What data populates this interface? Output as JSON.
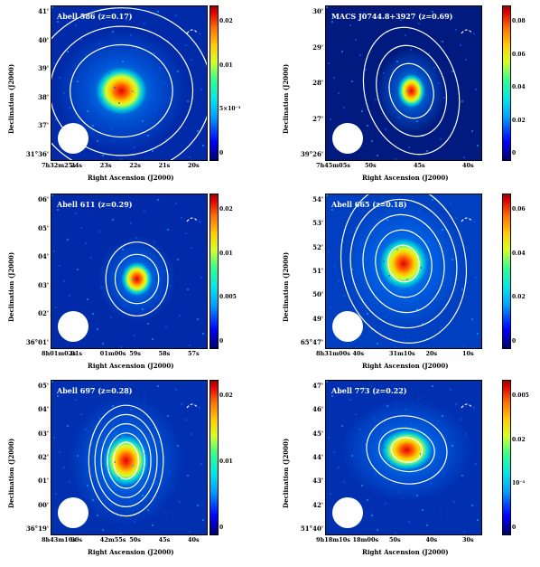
{
  "panels": [
    {
      "title": "Abell 586 (z=0.17)",
      "ylabel": "Declination (J2000)",
      "xlabel": "Right Ascension (J2000)",
      "yticks": [
        "41'",
        "40'",
        "39'",
        "38'",
        "37'",
        "31°36'"
      ],
      "xticks": [
        "7h32m25s",
        "24s",
        "23s",
        "22s",
        "21s",
        "20s"
      ],
      "cbticks": [
        "0.02",
        "0.01",
        "5×10⁻³",
        "0"
      ]
    },
    {
      "title": "MACS J0744.8+3927 (z=0.69)",
      "ylabel": "Declination (J2000)",
      "xlabel": "Right Ascension (J2000)",
      "yticks": [
        "30'",
        "29'",
        "28'",
        "27'",
        "39°26'"
      ],
      "xticks": [
        "7h45m05s",
        "50s",
        "45s",
        "40s"
      ],
      "cbticks": [
        "0.08",
        "0.06",
        "0.04",
        "0.02",
        "0"
      ]
    },
    {
      "title": "Abell 611 (z=0.29)",
      "ylabel": "Declination (J2000)",
      "xlabel": "Right Ascension (J2000)",
      "yticks": [
        "06'",
        "05'",
        "04'",
        "03'",
        "02'",
        "36°01'"
      ],
      "xticks": [
        "8h01m02s",
        "01s",
        "01m00s",
        "59s",
        "58s",
        "57s"
      ],
      "cbticks": [
        "0.02",
        "0.01",
        "0.005",
        "0"
      ]
    },
    {
      "title": "Abell 665 (z=0.18)",
      "ylabel": "Declination (J2000)",
      "xlabel": "Right Ascension (J2000)",
      "yticks": [
        "54'",
        "53'",
        "52'",
        "51'",
        "50'",
        "49'",
        "65°47'"
      ],
      "xticks": [
        "8h31m00s",
        "40s",
        "31m10s",
        "20s",
        "10s"
      ],
      "cbticks": [
        "0.06",
        "0.04",
        "0.02",
        "0"
      ]
    },
    {
      "title": "Abell 697 (z=0.28)",
      "ylabel": "Declination (J2000)",
      "xlabel": "Right Ascension (J2000)",
      "yticks": [
        "05'",
        "04'",
        "03'",
        "02'",
        "01'",
        "00'",
        "36°19'"
      ],
      "xticks": [
        "8h43m10s",
        "00s",
        "42m55s",
        "50s",
        "45s",
        "40s"
      ],
      "cbticks": [
        "0.02",
        "0.01",
        "0"
      ]
    },
    {
      "title": "Abell 773 (z=0.22)",
      "ylabel": "Declination (J2000)",
      "xlabel": "Right Ascension (J2000)",
      "yticks": [
        "47'",
        "46'",
        "45'",
        "44'",
        "43'",
        "42'",
        "51°40'"
      ],
      "xticks": [
        "9h18m10s",
        "18m00s",
        "50s",
        "40s",
        "30s"
      ],
      "cbticks": [
        "0.005",
        "0.02",
        "10⁻³",
        "0"
      ]
    }
  ],
  "colors": {
    "background": "#002aa8",
    "contour": "#ffffff",
    "hot": "#e00000"
  }
}
